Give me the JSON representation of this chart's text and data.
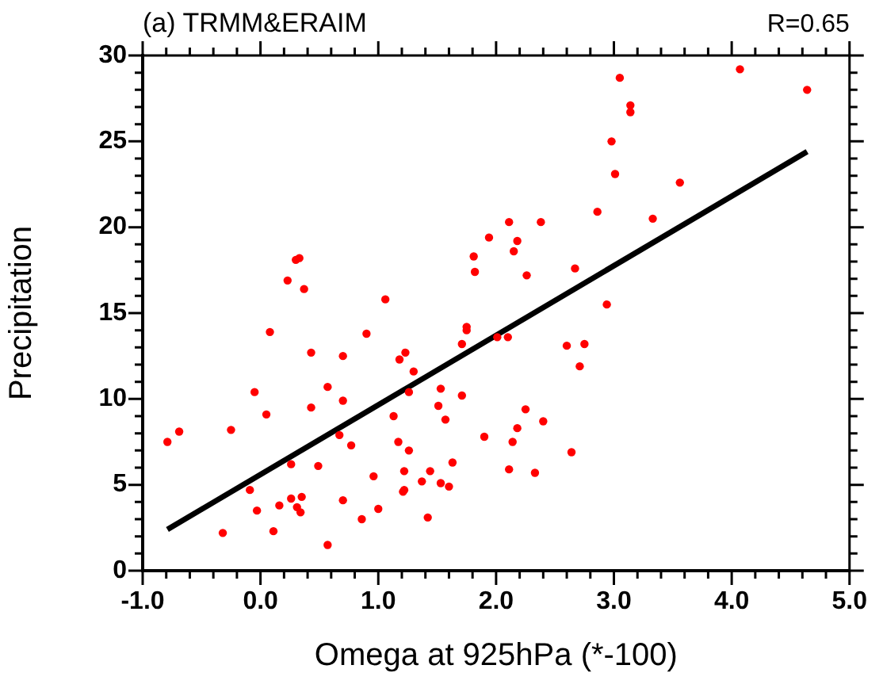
{
  "chart_data": {
    "type": "scatter",
    "title": "(a) TRMM&ERAIM",
    "annotations": [
      "R=0.65"
    ],
    "xlabel": "Omega at 925hPa (*-100)",
    "ylabel": "Precipitation",
    "x": [
      -0.79,
      -0.69,
      -0.32,
      -0.25,
      -0.09,
      -0.05,
      -0.03,
      0.05,
      0.08,
      0.11,
      0.16,
      0.26,
      0.26,
      0.31,
      0.34,
      0.35,
      0.43,
      0.43,
      0.49,
      0.57,
      0.57,
      0.7,
      0.7,
      0.67,
      0.7,
      0.77,
      0.86,
      0.9,
      0.96,
      1.0,
      1.06,
      1.13,
      1.17,
      1.18,
      1.21,
      1.22,
      1.22,
      1.23,
      1.26,
      1.26,
      1.3,
      1.37,
      1.42,
      1.44,
      1.51,
      1.53,
      1.53,
      1.57,
      1.6,
      1.63,
      1.71,
      1.71,
      1.75,
      1.75,
      1.9,
      0.23,
      0.3,
      0.33,
      0.37,
      1.81,
      1.82,
      1.94,
      2.11,
      2.18,
      2.15,
      2.26,
      2.38,
      2.67,
      2.86,
      2.94,
      2.98,
      3.01,
      3.05,
      3.14,
      3.14,
      3.33,
      3.56,
      4.07,
      4.64,
      2.01,
      2.1,
      2.6,
      2.75,
      2.71,
      2.25,
      2.4,
      2.18,
      2.14,
      2.64,
      2.11,
      2.33
    ],
    "series": [
      {
        "type": "scatter",
        "color": "#ff0000",
        "values": [
          7.5,
          8.1,
          2.2,
          8.2,
          4.7,
          10.4,
          3.5,
          9.1,
          13.9,
          2.3,
          3.8,
          4.2,
          6.2,
          3.7,
          3.4,
          4.3,
          12.7,
          9.5,
          6.1,
          10.7,
          1.5,
          12.5,
          9.9,
          7.9,
          4.1,
          7.3,
          3.0,
          13.8,
          5.5,
          3.6,
          15.8,
          9.0,
          7.5,
          12.3,
          4.6,
          4.7,
          5.8,
          12.7,
          10.4,
          7.0,
          11.6,
          5.2,
          3.1,
          5.8,
          9.6,
          10.6,
          5.1,
          8.8,
          4.9,
          6.3,
          13.2,
          10.2,
          14.2,
          14.0,
          7.8,
          16.9,
          18.1,
          18.2,
          16.4,
          18.3,
          17.4,
          19.4,
          20.3,
          19.2,
          18.6,
          17.2,
          20.3,
          17.6,
          20.9,
          15.5,
          25.0,
          23.1,
          28.7,
          27.1,
          26.7,
          20.5,
          22.6,
          29.2,
          28.0,
          13.6,
          13.6,
          13.1,
          13.2,
          11.9,
          9.4,
          8.7,
          8.3,
          7.5,
          6.9,
          5.9,
          5.7
        ]
      },
      {
        "type": "line",
        "marker": "none",
        "color": "#000000",
        "x": [
          -0.79,
          4.64
        ],
        "values": [
          2.4,
          24.4
        ]
      }
    ],
    "marker": "circle",
    "grid": false,
    "legend": false,
    "xlim": [
      -1,
      5
    ],
    "ylim": [
      0,
      30
    ],
    "xticks": [
      {
        "value": -1,
        "label": "-1.0"
      },
      {
        "value": -0.8,
        "label": null
      },
      {
        "value": -0.6,
        "label": null
      },
      {
        "value": -0.4,
        "label": null
      },
      {
        "value": -0.2,
        "label": null
      },
      {
        "value": 0,
        "label": "0.0"
      },
      {
        "value": 0.2,
        "label": null
      },
      {
        "value": 0.4,
        "label": null
      },
      {
        "value": 0.6,
        "label": null
      },
      {
        "value": 0.8,
        "label": null
      },
      {
        "value": 1,
        "label": "1.0"
      },
      {
        "value": 1.2,
        "label": null
      },
      {
        "value": 1.4,
        "label": null
      },
      {
        "value": 1.6,
        "label": null
      },
      {
        "value": 1.8,
        "label": null
      },
      {
        "value": 2,
        "label": "2.0"
      },
      {
        "value": 2.2,
        "label": null
      },
      {
        "value": 2.4,
        "label": null
      },
      {
        "value": 2.6,
        "label": null
      },
      {
        "value": 2.8,
        "label": null
      },
      {
        "value": 3,
        "label": "3.0"
      },
      {
        "value": 3.2,
        "label": null
      },
      {
        "value": 3.4,
        "label": null
      },
      {
        "value": 3.6,
        "label": null
      },
      {
        "value": 3.8,
        "label": null
      },
      {
        "value": 4,
        "label": "4.0"
      },
      {
        "value": 4.2,
        "label": null
      },
      {
        "value": 4.4,
        "label": null
      },
      {
        "value": 4.6,
        "label": null
      },
      {
        "value": 4.8,
        "label": null
      },
      {
        "value": 5,
        "label": "5.0"
      }
    ],
    "yticks": [
      0,
      {
        "value": 1,
        "label": null
      },
      {
        "value": 2,
        "label": null
      },
      {
        "value": 3,
        "label": null
      },
      {
        "value": 4,
        "label": null
      },
      5,
      {
        "value": 6,
        "label": null
      },
      {
        "value": 7,
        "label": null
      },
      {
        "value": 8,
        "label": null
      },
      {
        "value": 9,
        "label": null
      },
      10,
      {
        "value": 11,
        "label": null
      },
      {
        "value": 12,
        "label": null
      },
      {
        "value": 13,
        "label": null
      },
      {
        "value": 14,
        "label": null
      },
      15,
      {
        "value": 16,
        "label": null
      },
      {
        "value": 17,
        "label": null
      },
      {
        "value": 18,
        "label": null
      },
      {
        "value": 19,
        "label": null
      },
      20,
      {
        "value": 21,
        "label": null
      },
      {
        "value": 22,
        "label": null
      },
      {
        "value": 23,
        "label": null
      },
      {
        "value": 24,
        "label": null
      },
      25,
      {
        "value": 26,
        "label": null
      },
      {
        "value": 27,
        "label": null
      },
      {
        "value": 28,
        "label": null
      },
      {
        "value": 29,
        "label": null
      },
      30
    ]
  }
}
